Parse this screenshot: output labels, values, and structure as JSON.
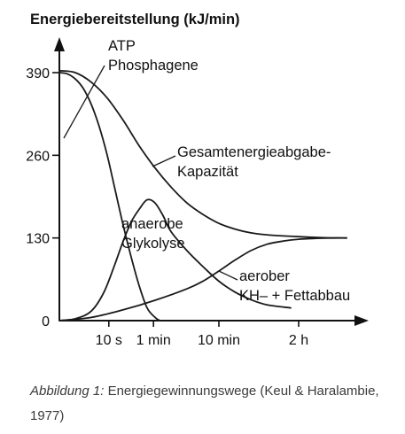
{
  "chart_data": {
    "type": "line",
    "title": "Energiebereitstellung (kJ/min)",
    "y_ticks": [
      "390",
      "260",
      "130",
      "0"
    ],
    "y_tick_values": [
      390,
      260,
      130,
      0
    ],
    "x_ticks": [
      "10 s",
      "1 min",
      "10 min",
      "2 h"
    ],
    "x_tick_positions": [
      0.31,
      0.59,
      1.0,
      1.5
    ],
    "ylim": [
      0,
      440
    ],
    "xlim": [
      0,
      1.92
    ],
    "series": [
      {
        "name": "ATP Phosphagene",
        "label_lines": [
          "ATP",
          "Phosphagene"
        ],
        "points": [
          [
            0.0,
            390
          ],
          [
            0.05,
            388
          ],
          [
            0.1,
            380
          ],
          [
            0.15,
            365
          ],
          [
            0.2,
            340
          ],
          [
            0.25,
            305
          ],
          [
            0.3,
            260
          ],
          [
            0.35,
            205
          ],
          [
            0.4,
            150
          ],
          [
            0.45,
            100
          ],
          [
            0.5,
            55
          ],
          [
            0.55,
            20
          ],
          [
            0.6,
            5
          ],
          [
            0.63,
            0
          ]
        ]
      },
      {
        "name": "Gesamtenergieabgabe-Kapazität",
        "label_lines": [
          "Gesamtenergieabgabe-",
          "Kapazität"
        ],
        "points": [
          [
            0.0,
            393
          ],
          [
            0.1,
            390
          ],
          [
            0.2,
            375
          ],
          [
            0.3,
            350
          ],
          [
            0.4,
            315
          ],
          [
            0.5,
            275
          ],
          [
            0.6,
            240
          ],
          [
            0.7,
            210
          ],
          [
            0.8,
            185
          ],
          [
            0.9,
            167
          ],
          [
            1.0,
            153
          ],
          [
            1.1,
            144
          ],
          [
            1.2,
            138
          ],
          [
            1.3,
            135
          ],
          [
            1.5,
            132
          ],
          [
            1.7,
            130
          ],
          [
            1.8,
            130
          ]
        ]
      },
      {
        "name": "anaerobe Glykolyse",
        "label_lines": [
          "anaerobe",
          "Glykolyse"
        ],
        "points": [
          [
            0.0,
            0
          ],
          [
            0.1,
            3
          ],
          [
            0.2,
            15
          ],
          [
            0.28,
            45
          ],
          [
            0.35,
            90
          ],
          [
            0.4,
            125
          ],
          [
            0.45,
            155
          ],
          [
            0.5,
            175
          ],
          [
            0.55,
            190
          ],
          [
            0.6,
            185
          ],
          [
            0.65,
            165
          ],
          [
            0.7,
            140
          ],
          [
            0.8,
            110
          ],
          [
            0.9,
            85
          ],
          [
            1.0,
            62
          ],
          [
            1.1,
            45
          ],
          [
            1.2,
            33
          ],
          [
            1.3,
            25
          ],
          [
            1.45,
            20
          ]
        ]
      },
      {
        "name": "aerober KH- + Fettabbau",
        "label_lines": [
          "aerober",
          "KH– + Fettabbau"
        ],
        "points": [
          [
            0.0,
            0
          ],
          [
            0.2,
            5
          ],
          [
            0.4,
            17
          ],
          [
            0.6,
            32
          ],
          [
            0.8,
            50
          ],
          [
            0.9,
            62
          ],
          [
            1.0,
            78
          ],
          [
            1.1,
            95
          ],
          [
            1.2,
            110
          ],
          [
            1.3,
            120
          ],
          [
            1.4,
            125
          ],
          [
            1.5,
            128
          ],
          [
            1.7,
            130
          ],
          [
            1.8,
            130
          ]
        ]
      }
    ]
  },
  "caption": {
    "label": "Abbildung 1:",
    "text": " Energiegewinnungswege (Keul & Haralambie, 1977)"
  }
}
